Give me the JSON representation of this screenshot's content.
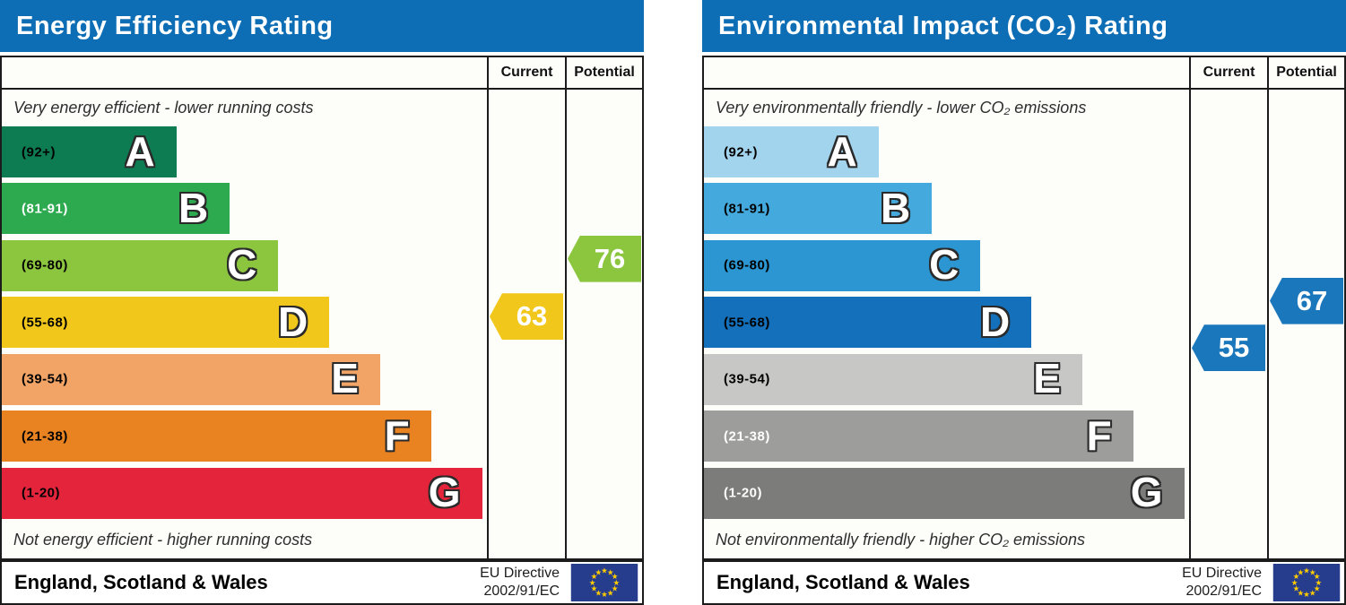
{
  "eu_flag": {
    "background": "#263c8d",
    "star_color": "#ffcc00"
  },
  "charts": [
    {
      "title": "Energy Efficiency Rating",
      "header_color": "#0d6eb5",
      "columns": {
        "current": "Current",
        "potential": "Potential"
      },
      "note_top": "Very energy efficient - lower running costs",
      "note_bottom": "Not energy efficient - higher running costs",
      "bands": [
        {
          "letter": "A",
          "label": "(92+)",
          "min": 92,
          "max": 100,
          "color": "#0e7c52",
          "label_color": "#000000",
          "width_pct": 36
        },
        {
          "letter": "B",
          "label": "(81-91)",
          "min": 81,
          "max": 91,
          "color": "#2daa4f",
          "label_color": "#ffffff",
          "width_pct": 47
        },
        {
          "letter": "C",
          "label": "(69-80)",
          "min": 69,
          "max": 80,
          "color": "#8cc63f",
          "label_color": "#000000",
          "width_pct": 57
        },
        {
          "letter": "D",
          "label": "(55-68)",
          "min": 55,
          "max": 68,
          "color": "#f2c71b",
          "label_color": "#000000",
          "width_pct": 67.5
        },
        {
          "letter": "E",
          "label": "(39-54)",
          "min": 39,
          "max": 54,
          "color": "#f1a466",
          "label_color": "#000000",
          "width_pct": 78
        },
        {
          "letter": "F",
          "label": "(21-38)",
          "min": 21,
          "max": 38,
          "color": "#e98322",
          "label_color": "#000000",
          "width_pct": 88.5
        },
        {
          "letter": "G",
          "label": "(1-20)",
          "min": 1,
          "max": 20,
          "color": "#e4243b",
          "label_color": "#000000",
          "width_pct": 99
        }
      ],
      "current": {
        "value": 63,
        "color": "#f2c71b"
      },
      "potential": {
        "value": 76,
        "color": "#8cc63f"
      },
      "footer": {
        "region": "England, Scotland & Wales",
        "directive_line1": "EU Directive",
        "directive_line2": "2002/91/EC"
      }
    },
    {
      "title": "Environmental Impact (CO₂) Rating",
      "header_color": "#0d6eb5",
      "columns": {
        "current": "Current",
        "potential": "Potential"
      },
      "note_top": "Very environmentally friendly - lower CO₂ emissions",
      "note_bottom": "Not environmentally friendly - higher CO₂ emissions",
      "bands": [
        {
          "letter": "A",
          "label": "(92+)",
          "min": 92,
          "max": 100,
          "color": "#a3d4ee",
          "label_color": "#000000",
          "width_pct": 36
        },
        {
          "letter": "B",
          "label": "(81-91)",
          "min": 81,
          "max": 91,
          "color": "#44a9dd",
          "label_color": "#000000",
          "width_pct": 47
        },
        {
          "letter": "C",
          "label": "(69-80)",
          "min": 69,
          "max": 80,
          "color": "#2b96d1",
          "label_color": "#000000",
          "width_pct": 57
        },
        {
          "letter": "D",
          "label": "(55-68)",
          "min": 55,
          "max": 68,
          "color": "#1470ba",
          "label_color": "#000000",
          "width_pct": 67.5
        },
        {
          "letter": "E",
          "label": "(39-54)",
          "min": 39,
          "max": 54,
          "color": "#c7c7c5",
          "label_color": "#000000",
          "width_pct": 78
        },
        {
          "letter": "F",
          "label": "(21-38)",
          "min": 21,
          "max": 38,
          "color": "#9d9d9b",
          "label_color": "#ffffff",
          "width_pct": 88.5
        },
        {
          "letter": "G",
          "label": "(1-20)",
          "min": 1,
          "max": 20,
          "color": "#7c7c7a",
          "label_color": "#ffffff",
          "width_pct": 99
        }
      ],
      "current": {
        "value": 55,
        "color": "#1b77bb"
      },
      "potential": {
        "value": 67,
        "color": "#1b77bb"
      },
      "footer": {
        "region": "England, Scotland & Wales",
        "directive_line1": "EU Directive",
        "directive_line2": "2002/91/EC"
      }
    }
  ],
  "chart_data": [
    {
      "type": "bar",
      "title": "Energy Efficiency Rating",
      "categories": [
        "A (92+)",
        "B (81-91)",
        "C (69-80)",
        "D (55-68)",
        "E (39-54)",
        "F (21-38)",
        "G (1-20)"
      ],
      "band_ranges": [
        [
          92,
          100
        ],
        [
          81,
          91
        ],
        [
          69,
          80
        ],
        [
          55,
          68
        ],
        [
          39,
          54
        ],
        [
          21,
          38
        ],
        [
          1,
          20
        ]
      ],
      "band_bar_widths_pct": [
        36,
        47,
        57,
        67.5,
        78,
        88.5,
        99
      ],
      "band_colors": [
        "#0e7c52",
        "#2daa4f",
        "#8cc63f",
        "#f2c71b",
        "#f1a466",
        "#e98322",
        "#e4243b"
      ],
      "series": [
        {
          "name": "Current",
          "values": [
            63
          ],
          "band": "D",
          "color": "#f2c71b"
        },
        {
          "name": "Potential",
          "values": [
            76
          ],
          "band": "C",
          "color": "#8cc63f"
        }
      ],
      "scale": [
        1,
        100
      ],
      "top_annotation": "Very energy efficient - lower running costs",
      "bottom_annotation": "Not energy efficient - higher running costs",
      "footnote": "England, Scotland & Wales — EU Directive 2002/91/EC",
      "legend_position": "top-right-columns",
      "grid": false
    },
    {
      "type": "bar",
      "title": "Environmental Impact (CO₂) Rating",
      "categories": [
        "A (92+)",
        "B (81-91)",
        "C (69-80)",
        "D (55-68)",
        "E (39-54)",
        "F (21-38)",
        "G (1-20)"
      ],
      "band_ranges": [
        [
          92,
          100
        ],
        [
          81,
          91
        ],
        [
          69,
          80
        ],
        [
          55,
          68
        ],
        [
          39,
          54
        ],
        [
          21,
          38
        ],
        [
          1,
          20
        ]
      ],
      "band_bar_widths_pct": [
        36,
        47,
        57,
        67.5,
        78,
        88.5,
        99
      ],
      "band_colors": [
        "#a3d4ee",
        "#44a9dd",
        "#2b96d1",
        "#1470ba",
        "#c7c7c5",
        "#9d9d9b",
        "#7c7c7a"
      ],
      "series": [
        {
          "name": "Current",
          "values": [
            55
          ],
          "band": "D",
          "color": "#1b77bb"
        },
        {
          "name": "Potential",
          "values": [
            67
          ],
          "band": "D",
          "color": "#1b77bb"
        }
      ],
      "scale": [
        1,
        100
      ],
      "top_annotation": "Very environmentally friendly - lower CO₂ emissions",
      "bottom_annotation": "Not environmentally friendly - higher CO₂ emissions",
      "footnote": "England, Scotland & Wales — EU Directive 2002/91/EC",
      "legend_position": "top-right-columns",
      "grid": false
    }
  ]
}
